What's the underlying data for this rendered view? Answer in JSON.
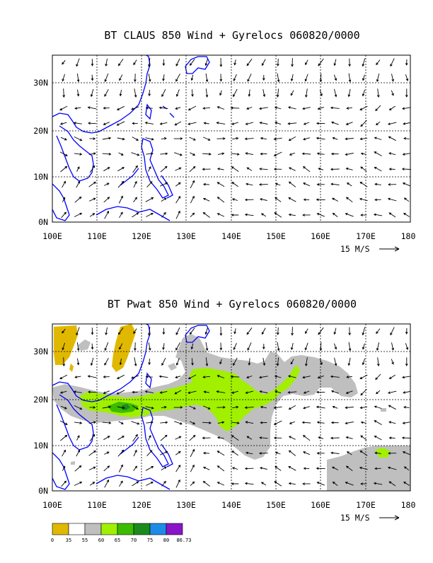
{
  "panels": [
    {
      "title": "BT CLAUS 850 Wind + Gyrelocs 060820/0000",
      "lon_labels": [
        "100E",
        "110E",
        "120E",
        "130E",
        "140E",
        "150E",
        "160E",
        "170E",
        "180"
      ],
      "lat_labels": [
        "0N",
        "10N",
        "20N",
        "30N"
      ],
      "vector_scale": "15 M/S"
    },
    {
      "title": "BT Pwat 850 Wind + Gyrelocs 060820/0000",
      "lon_labels": [
        "100E",
        "110E",
        "120E",
        "130E",
        "140E",
        "150E",
        "160E",
        "170E",
        "180"
      ],
      "lat_labels": [
        "0N",
        "10N",
        "20N",
        "30N"
      ],
      "vector_scale": "15 M/S"
    }
  ],
  "colorbar": {
    "labels": [
      "0",
      "35",
      "55",
      "60",
      "65",
      "70",
      "75",
      "80",
      "86.73"
    ],
    "colors": [
      "#e1b800",
      "#ffffff",
      "#bfbfbf",
      "#a0f000",
      "#3cbc00",
      "#1b8c1b",
      "#1e8ce6",
      "#8a14c8"
    ]
  },
  "colors": {
    "coastline": "#0000ff",
    "pwat_55_60": "#bfbfbf",
    "pwat_60_65": "#a0f000",
    "pwat_65_70": "#3cbc00",
    "pwat_low": "#e1b800"
  }
}
